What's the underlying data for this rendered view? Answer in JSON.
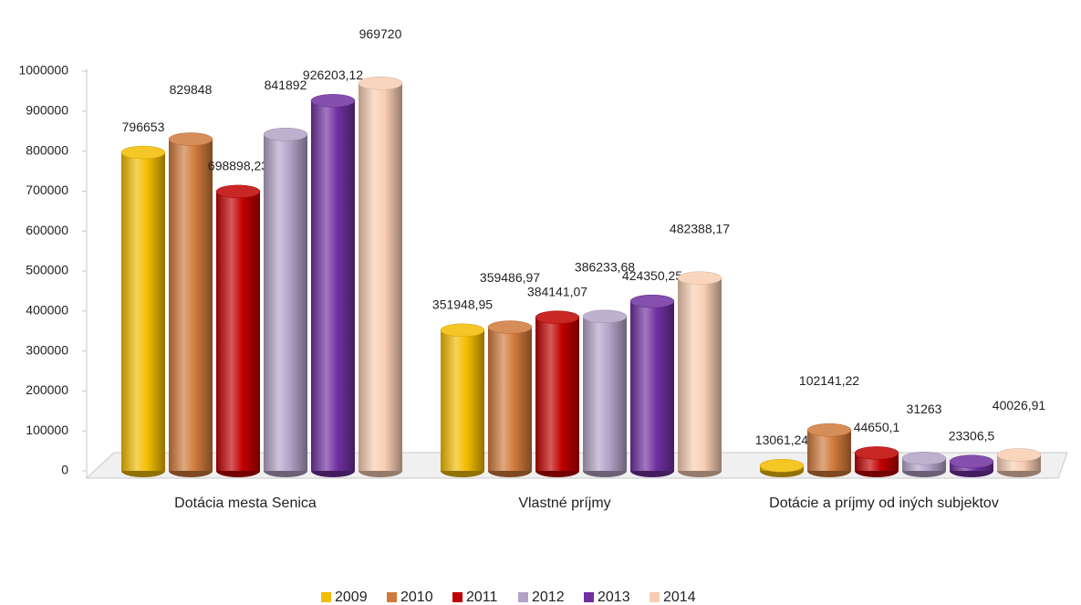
{
  "chart_data": {
    "type": "bar",
    "categories": [
      "Dotácia mesta Senica",
      "Vlastné príjmy",
      "Dotácie a príjmy od iných subjektov"
    ],
    "series": [
      {
        "name": "2009",
        "color": "#f2bc00",
        "values": [
          796653,
          351948.95,
          13061.24
        ],
        "value_labels": [
          "796653",
          "351948,95",
          "13061,24"
        ]
      },
      {
        "name": "2010",
        "color": "#d0793a",
        "values": [
          829848,
          359486.97,
          102141.22
        ],
        "value_labels": [
          "829848",
          "359486,97",
          "102141,22"
        ]
      },
      {
        "name": "2011",
        "color": "#c00000",
        "values": [
          698898.23,
          384141.07,
          44650.1
        ],
        "value_labels": [
          "698898,23",
          "384141,07",
          "44650,1"
        ]
      },
      {
        "name": "2012",
        "color": "#b3a2c7",
        "values": [
          841892,
          386233.68,
          31263
        ],
        "value_labels": [
          "841892",
          "386233,68",
          "31263"
        ]
      },
      {
        "name": "2013",
        "color": "#7030a0",
        "values": [
          926203.12,
          424350.25,
          23306.5
        ],
        "value_labels": [
          "926203,12",
          "424350,25",
          "23306,5"
        ]
      },
      {
        "name": "2014",
        "color": "#f8cdb3",
        "values": [
          969720,
          482388.17,
          40026.91
        ],
        "value_labels": [
          "969720",
          "482388,17",
          "40026,91"
        ]
      }
    ],
    "ylim": [
      0,
      1000000
    ],
    "yticks": [
      0,
      100000,
      200000,
      300000,
      400000,
      500000,
      600000,
      700000,
      800000,
      900000,
      1000000
    ],
    "legend": "bottom"
  }
}
